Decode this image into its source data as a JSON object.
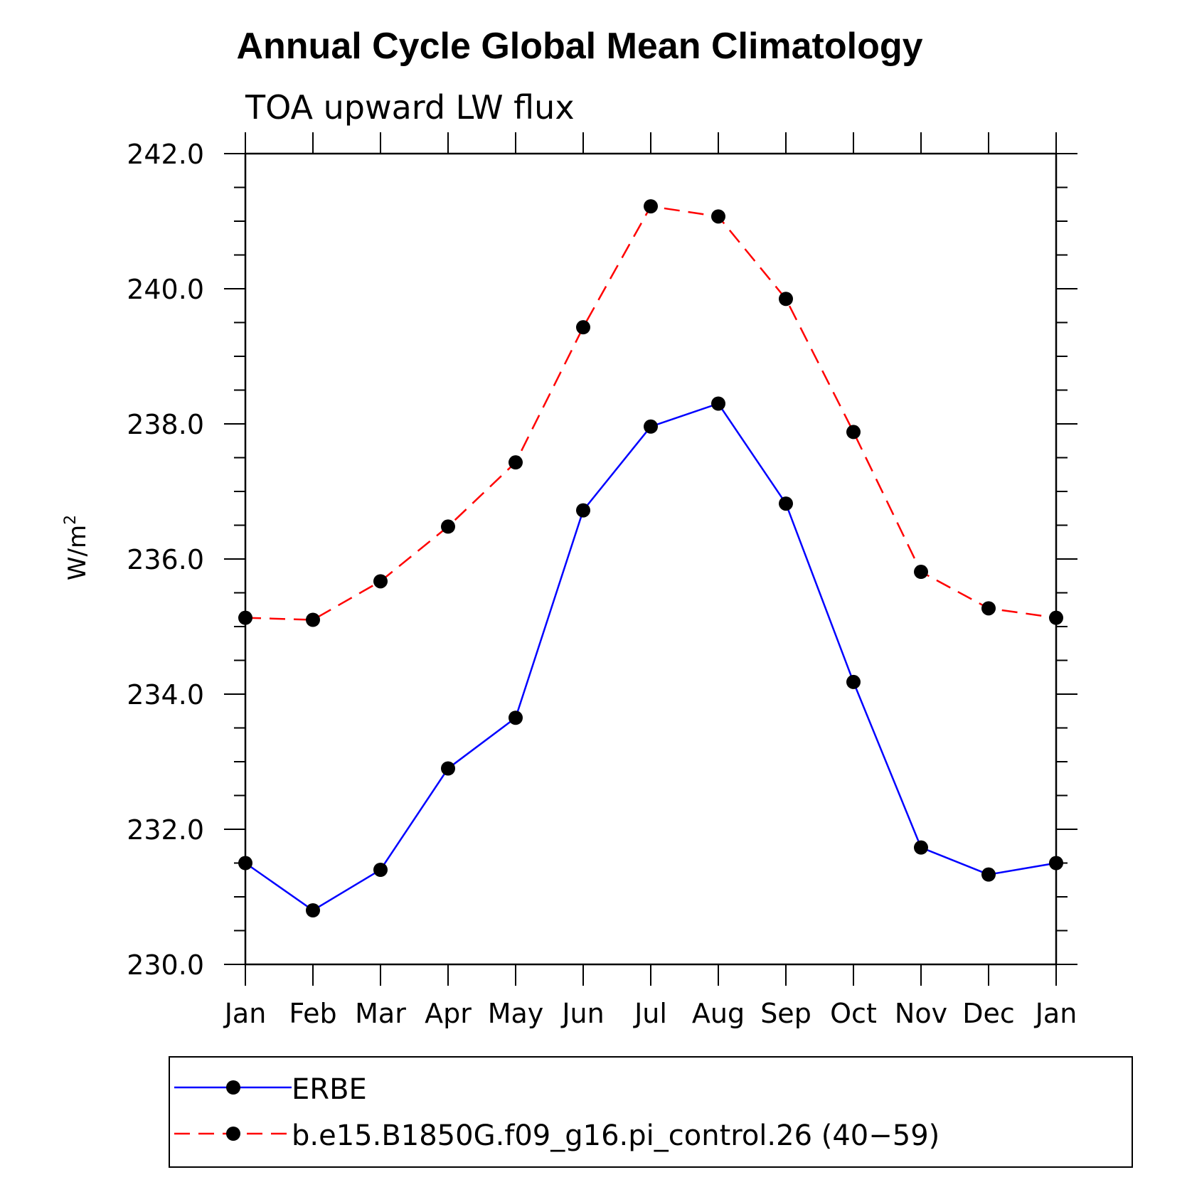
{
  "chart_data": {
    "type": "line",
    "title": "Annual Cycle Global Mean Climatology",
    "subtitle": "TOA upward LW flux",
    "ylabel": "W/m",
    "ylabel_sup": "2",
    "categories": [
      "Jan",
      "Feb",
      "Mar",
      "Apr",
      "May",
      "Jun",
      "Jul",
      "Aug",
      "Sep",
      "Oct",
      "Nov",
      "Dec",
      "Jan"
    ],
    "ylim": [
      230.0,
      242.0
    ],
    "y_ticks": [
      "230.0",
      "232.0",
      "234.0",
      "236.0",
      "238.0",
      "240.0",
      "242.0"
    ],
    "y_tick_values": [
      230,
      232,
      234,
      236,
      238,
      240,
      242
    ],
    "grid": false,
    "legend_position": "bottom",
    "series": [
      {
        "name": "ERBE",
        "color": "#0000ff",
        "dash": "solid",
        "values": [
          231.5,
          230.8,
          231.4,
          232.9,
          233.65,
          236.72,
          237.96,
          238.3,
          236.82,
          234.18,
          231.73,
          231.33,
          231.5
        ]
      },
      {
        "name": "b.e15.B1850G.f09_g16.pi_control.26 (40−59)",
        "color": "#ff0000",
        "dash": "dashed",
        "values": [
          235.13,
          235.1,
          235.67,
          236.48,
          237.43,
          239.43,
          241.22,
          241.07,
          239.85,
          237.88,
          235.81,
          235.27,
          235.13
        ]
      }
    ],
    "marker": "filled-circle",
    "marker_color": "#000000"
  }
}
